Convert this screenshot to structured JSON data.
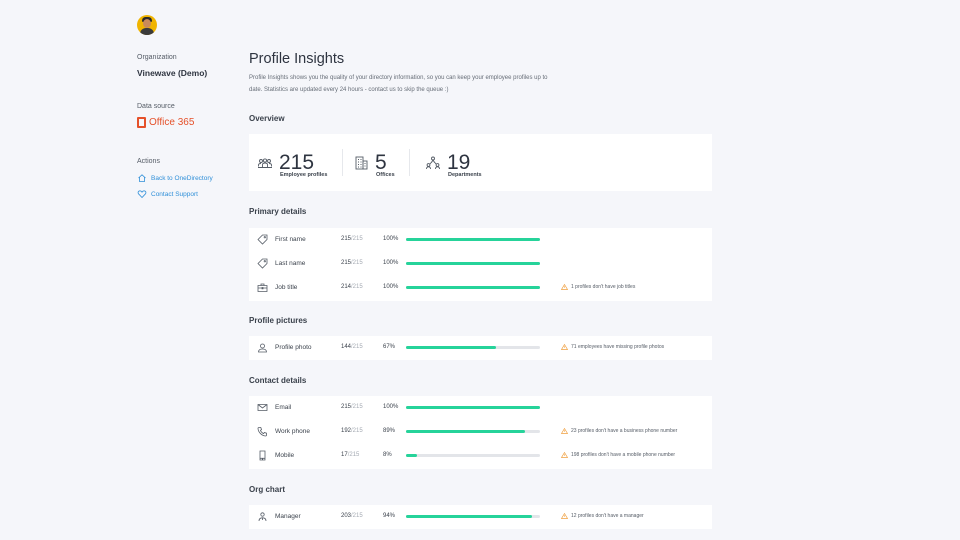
{
  "sidebar": {
    "organization_label": "Organization",
    "organization_name": "Vinewave (Demo)",
    "data_source_label": "Data source",
    "data_source_name": "Office 365",
    "actions_label": "Actions",
    "actions": [
      {
        "label": "Back to OneDirectory",
        "icon": "home-icon"
      },
      {
        "label": "Contact Support",
        "icon": "heart-icon"
      }
    ]
  },
  "colors": {
    "accent": "#2f8fd8",
    "office": "#e5512a",
    "progress": "#26d39a",
    "warning": "#f0a040"
  },
  "page": {
    "title": "Profile Insights",
    "description": "Profile Insights shows you the quality of your directory information, so you can keep your employee profiles up to date. Statistics are updated every 24 hours - contact us to skip the queue :)"
  },
  "overview": {
    "title": "Overview",
    "stats": [
      {
        "value": "215",
        "label": "Employee profiles",
        "icon": "people-icon"
      },
      {
        "value": "5",
        "label": "Offices",
        "icon": "building-icon"
      },
      {
        "value": "19",
        "label": "Departments",
        "icon": "org-icon"
      }
    ]
  },
  "sections": [
    {
      "title": "Primary details",
      "rows": [
        {
          "name": "First name",
          "count": "215",
          "total": "/215",
          "pct_label": "100%",
          "fraction": 1.0,
          "warning": "",
          "icon": "tag-icon"
        },
        {
          "name": "Last name",
          "count": "215",
          "total": "/215",
          "pct_label": "100%",
          "fraction": 1.0,
          "warning": "",
          "icon": "tag-icon"
        },
        {
          "name": "Job title",
          "count": "214",
          "total": "/215",
          "pct_label": "100%",
          "fraction": 1.0,
          "warning": "1 profiles don't have job titles",
          "icon": "briefcase-icon"
        }
      ]
    },
    {
      "title": "Profile pictures",
      "rows": [
        {
          "name": "Profile photo",
          "count": "144",
          "total": "/215",
          "pct_label": "67%",
          "fraction": 0.67,
          "warning": "71 employees have missing profile photos",
          "icon": "photo-icon"
        }
      ]
    },
    {
      "title": "Contact details",
      "rows": [
        {
          "name": "Email",
          "count": "215",
          "total": "/215",
          "pct_label": "100%",
          "fraction": 1.0,
          "warning": "",
          "icon": "envelope-icon"
        },
        {
          "name": "Work phone",
          "count": "192",
          "total": "/215",
          "pct_label": "89%",
          "fraction": 0.89,
          "warning": "23 profiles don't have a business phone number",
          "icon": "phone-icon"
        },
        {
          "name": "Mobile",
          "count": "17",
          "total": "/215",
          "pct_label": "8%",
          "fraction": 0.08,
          "warning": "198 profiles don't have a mobile phone number",
          "icon": "mobile-icon"
        }
      ]
    },
    {
      "title": "Org chart",
      "rows": [
        {
          "name": "Manager",
          "count": "203",
          "total": "/215",
          "pct_label": "94%",
          "fraction": 0.94,
          "warning": "12 profiles don't have a manager",
          "icon": "manager-icon"
        }
      ]
    }
  ]
}
